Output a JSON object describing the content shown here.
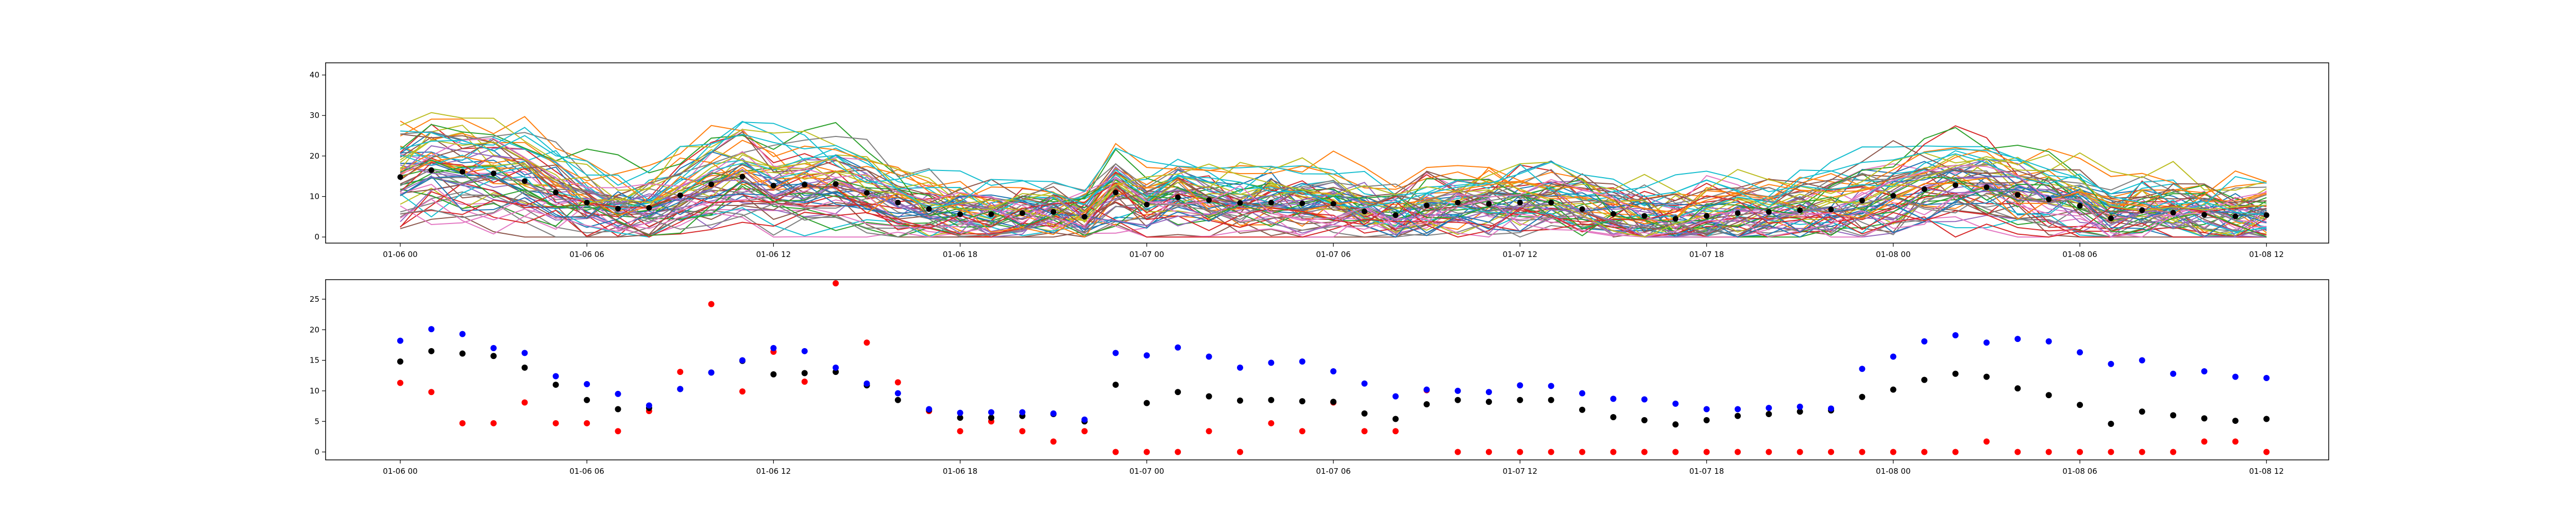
{
  "chart_data": [
    {
      "type": "line",
      "title": "",
      "xlabel": "",
      "ylabel": "",
      "x_tick_labels": [
        "01-06 00",
        "01-06 06",
        "01-06 12",
        "01-06 18",
        "01-07 00",
        "01-07 06",
        "01-07 12",
        "01-07 18",
        "01-08 00",
        "01-08 06",
        "01-08 12"
      ],
      "y_ticks": [
        0,
        10,
        20,
        30,
        40
      ],
      "xlim_hours": [
        -2.4,
        62.0
      ],
      "ylim": [
        -1.5,
        43.0
      ],
      "grid": false,
      "legend": "none",
      "series_count": 60,
      "series_colors": [
        "#1f77b4",
        "#ff7f0e",
        "#2ca02c",
        "#d62728",
        "#9467bd",
        "#8c564b",
        "#e377c2",
        "#7f7f7f",
        "#bcbd22",
        "#17becf"
      ],
      "mean_color": "#000000",
      "mean_points": {
        "hours": [
          0,
          1,
          2,
          3,
          4,
          5,
          6,
          7,
          8,
          9,
          10,
          11,
          12,
          13,
          14,
          15,
          16,
          17,
          18,
          19,
          20,
          21,
          22,
          23,
          24,
          25,
          26,
          27,
          28,
          29,
          30,
          31,
          32,
          33,
          34,
          35,
          36,
          37,
          38,
          39,
          40,
          41,
          42,
          43,
          44,
          45,
          46,
          47,
          48,
          49,
          50,
          51,
          52,
          53,
          54,
          55,
          56,
          57,
          58,
          59,
          60
        ],
        "values": [
          14.8,
          16.5,
          16.1,
          15.7,
          13.8,
          11.0,
          8.5,
          7.0,
          7.2,
          10.3,
          13.0,
          14.9,
          12.7,
          12.9,
          13.1,
          10.9,
          8.5,
          6.9,
          5.6,
          5.6,
          5.9,
          6.2,
          5.0,
          11.0,
          8.0,
          9.8,
          9.1,
          8.4,
          8.5,
          8.3,
          8.2,
          6.3,
          5.4,
          7.8,
          8.5,
          8.2,
          8.5,
          8.5,
          6.9,
          5.7,
          5.2,
          4.5,
          5.2,
          5.9,
          6.2,
          6.6,
          6.8,
          9.0,
          10.2,
          11.8,
          12.8,
          12.3,
          10.4,
          9.3,
          7.7,
          4.6,
          6.6,
          6.0,
          5.5,
          5.1,
          5.4
        ]
      }
    },
    {
      "type": "scatter",
      "title": "",
      "xlabel": "",
      "ylabel": "",
      "x_tick_labels": [
        "01-06 00",
        "01-06 06",
        "01-06 12",
        "01-06 18",
        "01-07 00",
        "01-07 06",
        "01-07 12",
        "01-07 18",
        "01-08 00",
        "01-08 06",
        "01-08 12"
      ],
      "y_ticks": [
        0,
        5,
        10,
        15,
        20,
        25
      ],
      "xlim_hours": [
        -2.4,
        62.0
      ],
      "ylim": [
        -1.3,
        28.2
      ],
      "grid": false,
      "legend": "none",
      "hours": [
        0,
        1,
        2,
        3,
        4,
        5,
        6,
        7,
        8,
        9,
        10,
        11,
        12,
        13,
        14,
        15,
        16,
        17,
        18,
        19,
        20,
        21,
        22,
        23,
        24,
        25,
        26,
        27,
        28,
        29,
        30,
        31,
        32,
        33,
        34,
        35,
        36,
        37,
        38,
        39,
        40,
        41,
        42,
        43,
        44,
        45,
        46,
        47,
        48,
        49,
        50,
        51,
        52,
        53,
        54,
        55,
        56,
        57,
        58,
        59,
        60
      ],
      "series": [
        {
          "name": "",
          "color": "#000000",
          "values": [
            14.8,
            16.5,
            16.1,
            15.7,
            13.8,
            11.0,
            8.5,
            7.0,
            7.2,
            10.3,
            13.0,
            14.9,
            12.7,
            12.9,
            13.1,
            10.9,
            8.5,
            6.9,
            5.6,
            5.6,
            5.9,
            6.2,
            5.0,
            11.0,
            8.0,
            9.8,
            9.1,
            8.4,
            8.5,
            8.3,
            8.2,
            6.3,
            5.4,
            7.8,
            8.5,
            8.2,
            8.5,
            8.5,
            6.9,
            5.7,
            5.2,
            4.5,
            5.2,
            5.9,
            6.2,
            6.6,
            6.8,
            9.0,
            10.2,
            11.8,
            12.8,
            12.3,
            10.4,
            9.3,
            7.7,
            4.6,
            6.6,
            6.0,
            5.5,
            5.1,
            5.4
          ]
        },
        {
          "name": "",
          "color": "#0000ff",
          "values": [
            18.2,
            20.1,
            19.3,
            17.0,
            16.2,
            12.4,
            11.1,
            9.5,
            7.6,
            10.3,
            13.0,
            15.0,
            17.0,
            16.5,
            13.8,
            11.2,
            9.6,
            7.0,
            6.4,
            6.5,
            6.5,
            6.3,
            5.3,
            16.2,
            15.8,
            17.1,
            15.6,
            13.8,
            14.6,
            14.8,
            13.2,
            11.2,
            9.1,
            10.2,
            10.0,
            9.8,
            10.9,
            10.8,
            9.6,
            8.7,
            8.6,
            7.9,
            7.0,
            7.0,
            7.2,
            7.4,
            7.1,
            13.6,
            15.6,
            18.1,
            19.1,
            17.9,
            18.5,
            18.1,
            16.3,
            14.4,
            15.0,
            12.8,
            13.2,
            12.3,
            12.1
          ]
        },
        {
          "name": "",
          "color": "#ff0000",
          "values": [
            11.3,
            9.8,
            4.7,
            4.7,
            8.1,
            4.7,
            4.7,
            3.4,
            6.7,
            13.1,
            24.2,
            9.9,
            16.4,
            11.5,
            27.6,
            17.9,
            11.4,
            6.7,
            3.4,
            5.0,
            3.4,
            1.7,
            3.4,
            0.0,
            0.0,
            0.0,
            3.4,
            0.0,
            4.7,
            3.4,
            8.1,
            3.4,
            3.4,
            10.1,
            0.0,
            0.0,
            0.0,
            0.0,
            0.0,
            0.0,
            0.0,
            0.0,
            0.0,
            0.0,
            0.0,
            0.0,
            0.0,
            0.0,
            0.0,
            0.0,
            0.0,
            1.7,
            0.0,
            0.0,
            0.0,
            0.0,
            0.0,
            0.0,
            1.7,
            1.7,
            0.0
          ]
        }
      ]
    }
  ]
}
